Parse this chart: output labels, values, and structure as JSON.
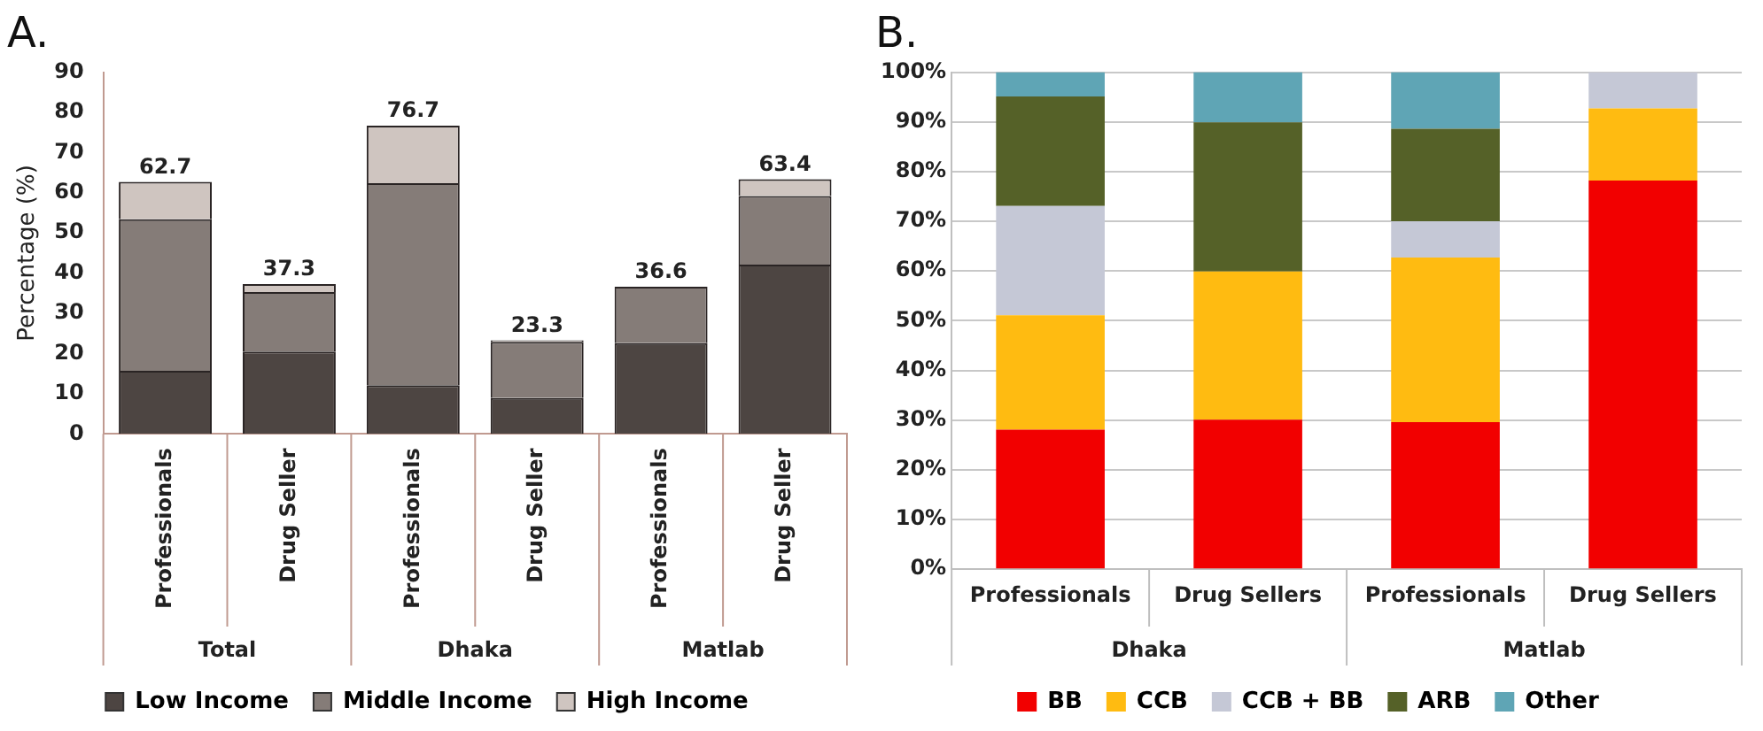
{
  "chart_data": [
    {
      "type": "bar",
      "title": "A.",
      "ylabel": "Percentage (%)",
      "stacked": true,
      "categories": [
        "Professionals",
        "Drug Seller",
        "Professionals",
        "Drug Seller",
        "Professionals",
        "Drug Seller"
      ],
      "series": [
        {
          "name": "Low Income",
          "color": "#4d4542",
          "values": [
            15.7,
            20.5,
            12.1,
            8.9,
            22.6,
            42.1
          ]
        },
        {
          "name": "Middle Income",
          "color": "#857c78",
          "values": [
            37.7,
            14.8,
            50.3,
            14.0,
            14.0,
            17.1
          ]
        },
        {
          "name": "High Income",
          "color": "#cfc5c0",
          "values": [
            9.3,
            2.0,
            14.3,
            0.4,
            0,
            4.2
          ]
        }
      ],
      "totals": [
        "62.7",
        "37.3",
        "76.7",
        "23.3",
        "36.6",
        "63.4"
      ],
      "annotations": [
        "Total",
        "Dhaka",
        "Matlab"
      ],
      "ylim": [
        0,
        90
      ],
      "yticks": [
        0,
        10,
        20,
        30,
        40,
        50,
        60,
        70,
        80,
        90
      ],
      "grid": false,
      "legend": "bottom"
    },
    {
      "type": "bar",
      "title": "B.",
      "stacked": true,
      "categories": [
        "Professionals",
        "Drug Sellers",
        "Professionals",
        "Drug Sellers"
      ],
      "series": [
        {
          "name": "BB",
          "color": "#f20000",
          "values": [
            28.1,
            30.1,
            29.6,
            78.2
          ]
        },
        {
          "name": "CCB",
          "color": "#ffbb11",
          "values": [
            23.0,
            29.8,
            33.1,
            14.5
          ]
        },
        {
          "name": "CCB + BB",
          "color": "#c5c8d6",
          "values": [
            22.0,
            0,
            7.3,
            7.3
          ]
        },
        {
          "name": "ARB",
          "color": "#556128",
          "values": [
            22.0,
            30.0,
            18.6,
            0
          ]
        },
        {
          "name": "Other",
          "color": "#5fa5b5",
          "values": [
            4.9,
            10.1,
            11.4,
            0
          ]
        }
      ],
      "annotations": [
        "Dhaka",
        "Matlab"
      ],
      "ylim": [
        0,
        100
      ],
      "yticks": [
        {
          "value": 0,
          "label": "0%"
        },
        {
          "value": 10,
          "label": "10%"
        },
        {
          "value": 20,
          "label": "20%"
        },
        {
          "value": 30,
          "label": "30%"
        },
        {
          "value": 40,
          "label": "40%"
        },
        {
          "value": 50,
          "label": "50%"
        },
        {
          "value": 60,
          "label": "60%"
        },
        {
          "value": 70,
          "label": "70%"
        },
        {
          "value": 80,
          "label": "80%"
        },
        {
          "value": 90,
          "label": "90%"
        },
        {
          "value": 100,
          "label": "100%"
        }
      ],
      "grid": "y",
      "legend": "bottom"
    }
  ]
}
